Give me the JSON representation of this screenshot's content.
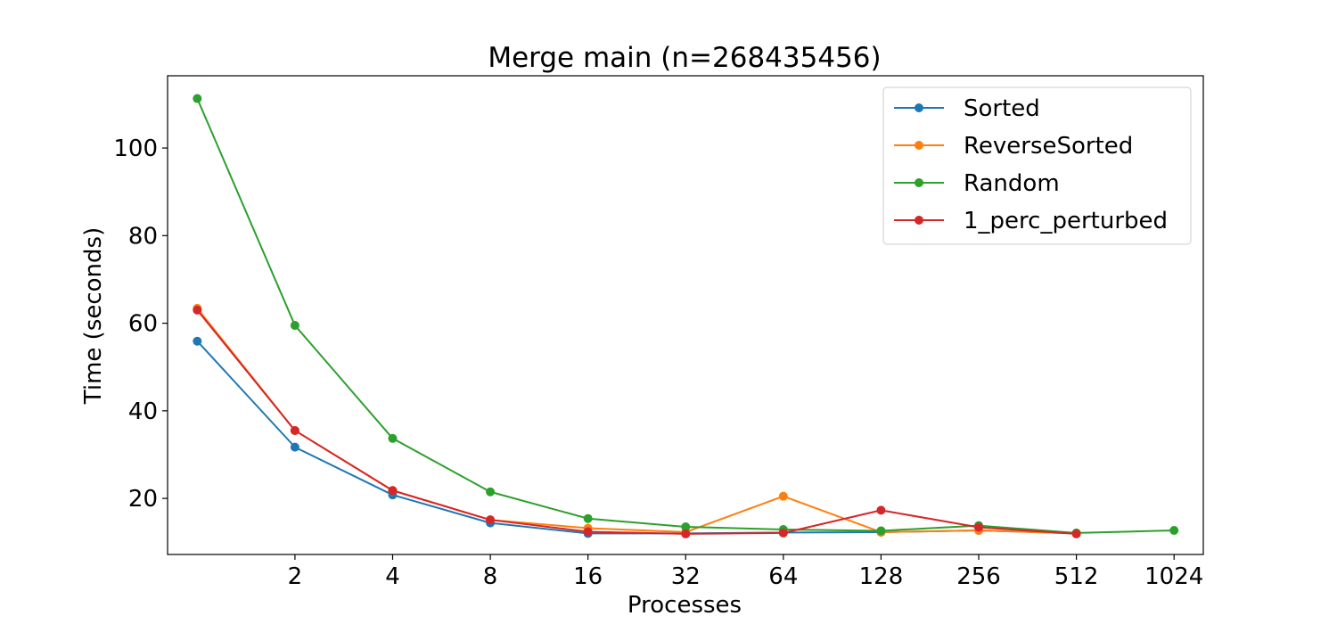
{
  "chart_data": {
    "type": "line",
    "title": "Merge main (n=268435456)",
    "xlabel": "Processes",
    "ylabel": "Time (seconds)",
    "x_scale": "log2",
    "xlim": [
      0.81,
      1260
    ],
    "ylim": [
      7.2,
      116.5
    ],
    "x_ticks": [
      2,
      4,
      8,
      16,
      32,
      64,
      128,
      256,
      512,
      1024
    ],
    "x_tick_labels": [
      "2",
      "4",
      "8",
      "16",
      "32",
      "64",
      "128",
      "256",
      "512",
      "1024"
    ],
    "y_ticks": [
      20,
      40,
      60,
      80,
      100
    ],
    "y_tick_labels": [
      "20",
      "40",
      "60",
      "80",
      "100"
    ],
    "grid": false,
    "legend_position": "top-right",
    "series": [
      {
        "name": "Sorted",
        "color": "#1f77b4",
        "x": [
          1,
          2,
          4,
          8,
          16,
          32,
          64,
          128,
          256,
          512
        ],
        "y": [
          55.9,
          31.7,
          20.8,
          14.4,
          12.0,
          12.0,
          12.2,
          12.3,
          12.7,
          12.0
        ]
      },
      {
        "name": "ReverseSorted",
        "color": "#ff7f0e",
        "x": [
          1,
          2,
          4,
          8,
          16,
          32,
          64,
          128,
          256,
          512
        ],
        "y": [
          63.4,
          35.5,
          21.8,
          15.1,
          13.2,
          12.3,
          20.5,
          12.3,
          12.7,
          12.0
        ]
      },
      {
        "name": "Random",
        "color": "#2ca02c",
        "x": [
          1,
          2,
          4,
          8,
          16,
          32,
          64,
          128,
          256,
          512,
          1024
        ],
        "y": [
          111.3,
          59.5,
          33.7,
          21.5,
          15.4,
          13.5,
          12.9,
          12.6,
          13.8,
          12.1,
          12.7
        ]
      },
      {
        "name": "1_perc_perturbed",
        "color": "#d62728",
        "x": [
          1,
          2,
          4,
          8,
          16,
          32,
          64,
          128,
          256,
          512
        ],
        "y": [
          63.0,
          35.5,
          21.8,
          15.1,
          12.4,
          11.9,
          12.1,
          17.3,
          13.4,
          11.9
        ]
      }
    ]
  }
}
